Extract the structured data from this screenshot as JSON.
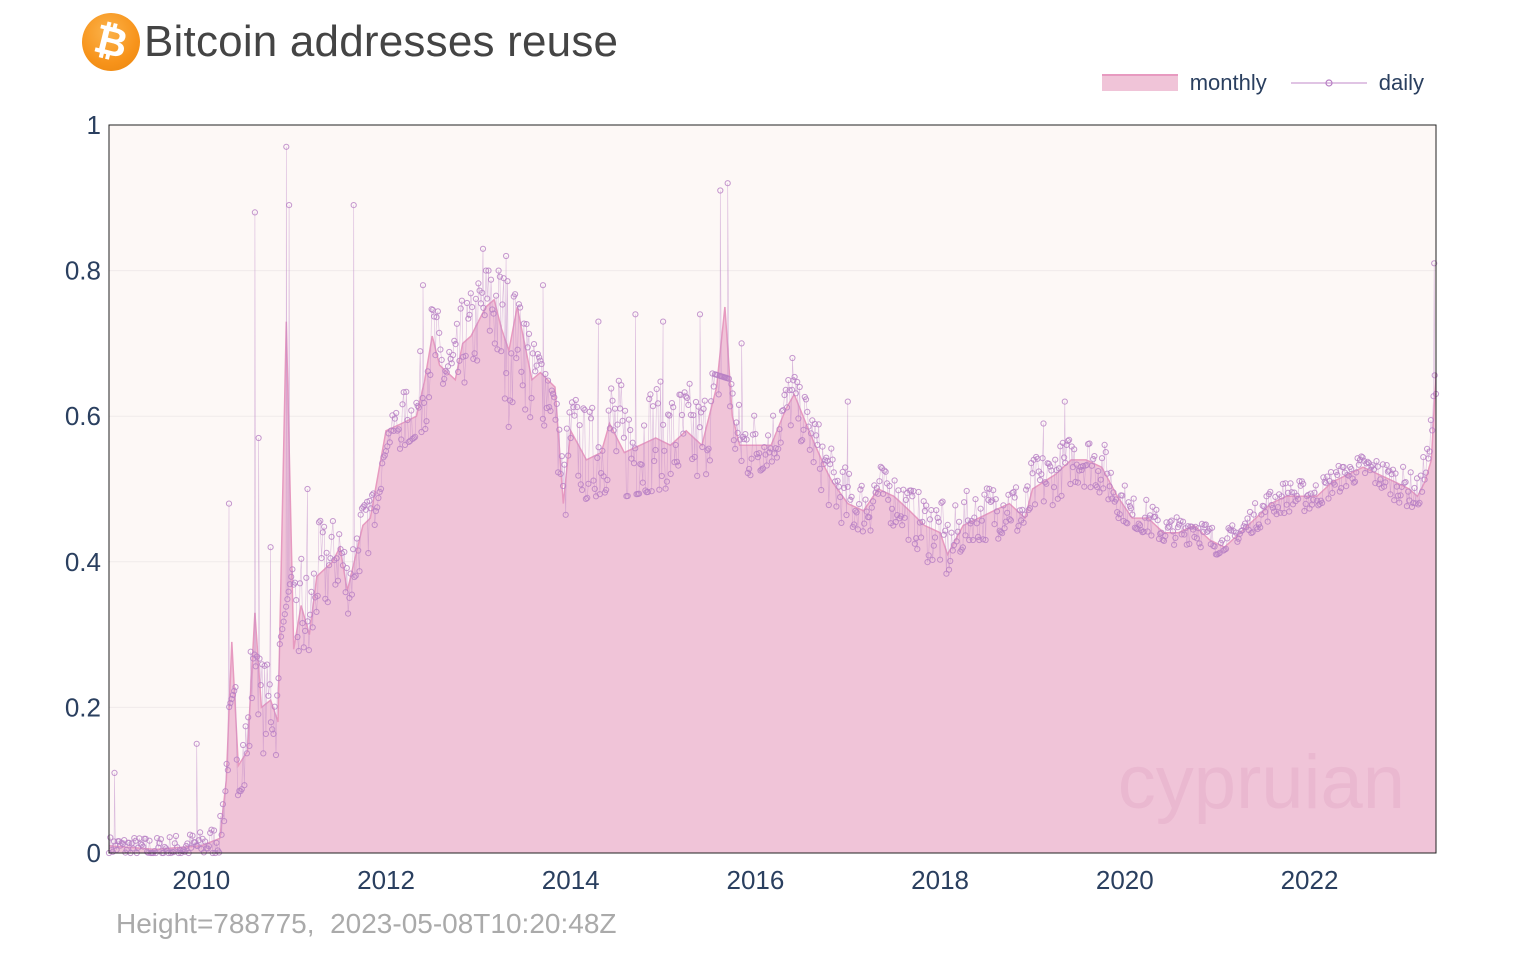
{
  "header": {
    "title": "Bitcoin addresses reuse",
    "logo_icon": "bitcoin-logo-icon",
    "logo_glyph": "₿"
  },
  "footer": {
    "height_label": "Height=788775,",
    "timestamp": "2023-05-08T10:20:48Z"
  },
  "watermark": "cypruian",
  "colors": {
    "plot_bg": "#fdf8f6",
    "monthly_fill": "#f0c4d8",
    "monthly_line": "#e79ac0",
    "daily_line": "#c088c8",
    "daily_marker": "#b77ec4",
    "axis_text": "#2a3f5f",
    "grid": "#f0ebea"
  },
  "chart_data": {
    "type": "area",
    "title": "Bitcoin addresses reuse",
    "xlabel": "",
    "ylabel": "",
    "xlim": [
      2009.0,
      2023.37
    ],
    "ylim": [
      0,
      1
    ],
    "x_ticks": [
      2010,
      2012,
      2014,
      2016,
      2018,
      2020,
      2022
    ],
    "x_tick_labels": [
      "2010",
      "2012",
      "2014",
      "2016",
      "2018",
      "2020",
      "2022"
    ],
    "y_ticks": [
      0,
      0.2,
      0.4,
      0.6,
      0.8,
      1
    ],
    "y_tick_labels": [
      "0",
      "0.2",
      "0.4",
      "0.6",
      "0.8",
      "1"
    ],
    "grid": true,
    "legend_position": "top-right",
    "series": [
      {
        "name": "monthly",
        "style": "filled area",
        "points": [
          [
            2009.0,
            0.01
          ],
          [
            2009.5,
            0.005
          ],
          [
            2010.0,
            0.01
          ],
          [
            2010.2,
            0.02
          ],
          [
            2010.27,
            0.1
          ],
          [
            2010.33,
            0.29
          ],
          [
            2010.4,
            0.12
          ],
          [
            2010.5,
            0.14
          ],
          [
            2010.58,
            0.33
          ],
          [
            2010.65,
            0.2
          ],
          [
            2010.75,
            0.21
          ],
          [
            2010.83,
            0.18
          ],
          [
            2010.92,
            0.73
          ],
          [
            2011.0,
            0.28
          ],
          [
            2011.08,
            0.34
          ],
          [
            2011.17,
            0.3
          ],
          [
            2011.25,
            0.38
          ],
          [
            2011.42,
            0.4
          ],
          [
            2011.5,
            0.42
          ],
          [
            2011.58,
            0.36
          ],
          [
            2011.75,
            0.45
          ],
          [
            2011.83,
            0.46
          ],
          [
            2012.0,
            0.58
          ],
          [
            2012.17,
            0.59
          ],
          [
            2012.33,
            0.6
          ],
          [
            2012.42,
            0.65
          ],
          [
            2012.5,
            0.71
          ],
          [
            2012.58,
            0.67
          ],
          [
            2012.75,
            0.65
          ],
          [
            2012.83,
            0.7
          ],
          [
            2012.92,
            0.71
          ],
          [
            2013.08,
            0.75
          ],
          [
            2013.17,
            0.76
          ],
          [
            2013.25,
            0.72
          ],
          [
            2013.33,
            0.69
          ],
          [
            2013.42,
            0.75
          ],
          [
            2013.58,
            0.65
          ],
          [
            2013.67,
            0.66
          ],
          [
            2013.83,
            0.64
          ],
          [
            2013.92,
            0.48
          ],
          [
            2014.0,
            0.58
          ],
          [
            2014.17,
            0.54
          ],
          [
            2014.33,
            0.55
          ],
          [
            2014.42,
            0.59
          ],
          [
            2014.58,
            0.55
          ],
          [
            2014.75,
            0.56
          ],
          [
            2014.92,
            0.57
          ],
          [
            2015.08,
            0.56
          ],
          [
            2015.25,
            0.58
          ],
          [
            2015.42,
            0.56
          ],
          [
            2015.5,
            0.6
          ],
          [
            2015.58,
            0.64
          ],
          [
            2015.67,
            0.75
          ],
          [
            2015.75,
            0.6
          ],
          [
            2015.83,
            0.56
          ],
          [
            2016.0,
            0.56
          ],
          [
            2016.17,
            0.56
          ],
          [
            2016.33,
            0.61
          ],
          [
            2016.42,
            0.63
          ],
          [
            2016.58,
            0.58
          ],
          [
            2016.75,
            0.53
          ],
          [
            2016.83,
            0.51
          ],
          [
            2017.0,
            0.48
          ],
          [
            2017.17,
            0.47
          ],
          [
            2017.33,
            0.5
          ],
          [
            2017.5,
            0.49
          ],
          [
            2017.67,
            0.47
          ],
          [
            2017.83,
            0.45
          ],
          [
            2018.0,
            0.44
          ],
          [
            2018.08,
            0.41
          ],
          [
            2018.25,
            0.45
          ],
          [
            2018.42,
            0.46
          ],
          [
            2018.58,
            0.47
          ],
          [
            2018.75,
            0.48
          ],
          [
            2018.92,
            0.46
          ],
          [
            2019.0,
            0.5
          ],
          [
            2019.25,
            0.52
          ],
          [
            2019.42,
            0.54
          ],
          [
            2019.58,
            0.54
          ],
          [
            2019.75,
            0.53
          ],
          [
            2019.92,
            0.49
          ],
          [
            2020.08,
            0.46
          ],
          [
            2020.25,
            0.46
          ],
          [
            2020.42,
            0.44
          ],
          [
            2020.58,
            0.44
          ],
          [
            2020.75,
            0.45
          ],
          [
            2020.92,
            0.43
          ],
          [
            2021.08,
            0.42
          ],
          [
            2021.25,
            0.44
          ],
          [
            2021.42,
            0.46
          ],
          [
            2021.58,
            0.48
          ],
          [
            2021.75,
            0.49
          ],
          [
            2021.92,
            0.49
          ],
          [
            2022.08,
            0.49
          ],
          [
            2022.25,
            0.51
          ],
          [
            2022.42,
            0.52
          ],
          [
            2022.58,
            0.53
          ],
          [
            2022.75,
            0.52
          ],
          [
            2022.92,
            0.51
          ],
          [
            2023.08,
            0.5
          ],
          [
            2023.17,
            0.49
          ],
          [
            2023.25,
            0.51
          ],
          [
            2023.32,
            0.54
          ],
          [
            2023.37,
            0.66
          ]
        ]
      },
      {
        "name": "daily",
        "style": "thin line with hollow circle markers",
        "envelope_lower": [
          [
            2009.0,
            0.0
          ],
          [
            2010.2,
            0.0
          ],
          [
            2010.3,
            0.06
          ],
          [
            2010.5,
            0.1
          ],
          [
            2010.8,
            0.12
          ],
          [
            2011.0,
            0.2
          ],
          [
            2011.3,
            0.3
          ],
          [
            2011.6,
            0.33
          ],
          [
            2011.9,
            0.4
          ],
          [
            2012.1,
            0.55
          ],
          [
            2012.4,
            0.58
          ],
          [
            2012.8,
            0.62
          ],
          [
            2013.0,
            0.66
          ],
          [
            2013.3,
            0.56
          ],
          [
            2013.6,
            0.52
          ],
          [
            2013.9,
            0.46
          ],
          [
            2014.2,
            0.49
          ],
          [
            2014.6,
            0.49
          ],
          [
            2015.0,
            0.5
          ],
          [
            2015.5,
            0.51
          ],
          [
            2016.0,
            0.52
          ],
          [
            2016.4,
            0.56
          ],
          [
            2016.8,
            0.46
          ],
          [
            2017.2,
            0.44
          ],
          [
            2017.6,
            0.41
          ],
          [
            2018.0,
            0.37
          ],
          [
            2018.3,
            0.43
          ],
          [
            2018.7,
            0.43
          ],
          [
            2019.0,
            0.45
          ],
          [
            2019.4,
            0.5
          ],
          [
            2019.8,
            0.47
          ],
          [
            2020.2,
            0.44
          ],
          [
            2020.6,
            0.42
          ],
          [
            2021.0,
            0.41
          ],
          [
            2021.5,
            0.45
          ],
          [
            2022.0,
            0.47
          ],
          [
            2022.5,
            0.51
          ],
          [
            2023.0,
            0.47
          ],
          [
            2023.2,
            0.48
          ],
          [
            2023.37,
            0.6
          ]
        ],
        "envelope_upper": [
          [
            2009.0,
            0.03
          ],
          [
            2010.2,
            0.05
          ],
          [
            2010.3,
            0.2
          ],
          [
            2010.5,
            0.28
          ],
          [
            2010.8,
            0.25
          ],
          [
            2011.0,
            0.4
          ],
          [
            2011.3,
            0.46
          ],
          [
            2011.6,
            0.45
          ],
          [
            2011.9,
            0.5
          ],
          [
            2012.1,
            0.62
          ],
          [
            2012.4,
            0.74
          ],
          [
            2012.8,
            0.77
          ],
          [
            2013.0,
            0.8
          ],
          [
            2013.3,
            0.8
          ],
          [
            2013.6,
            0.7
          ],
          [
            2013.9,
            0.6
          ],
          [
            2014.2,
            0.65
          ],
          [
            2014.6,
            0.7
          ],
          [
            2015.0,
            0.68
          ],
          [
            2015.5,
            0.66
          ],
          [
            2016.0,
            0.64
          ],
          [
            2016.4,
            0.66
          ],
          [
            2016.8,
            0.56
          ],
          [
            2017.2,
            0.55
          ],
          [
            2017.6,
            0.5
          ],
          [
            2018.0,
            0.49
          ],
          [
            2018.3,
            0.53
          ],
          [
            2018.7,
            0.52
          ],
          [
            2019.0,
            0.55
          ],
          [
            2019.4,
            0.58
          ],
          [
            2019.8,
            0.56
          ],
          [
            2020.2,
            0.5
          ],
          [
            2020.6,
            0.47
          ],
          [
            2021.0,
            0.46
          ],
          [
            2021.5,
            0.5
          ],
          [
            2022.0,
            0.52
          ],
          [
            2022.5,
            0.55
          ],
          [
            2023.0,
            0.53
          ],
          [
            2023.2,
            0.54
          ],
          [
            2023.37,
            0.8
          ]
        ],
        "spikes": [
          [
            2009.06,
            0.11
          ],
          [
            2009.95,
            0.15
          ],
          [
            2010.3,
            0.48
          ],
          [
            2010.58,
            0.88
          ],
          [
            2010.62,
            0.57
          ],
          [
            2010.75,
            0.42
          ],
          [
            2010.92,
            0.97
          ],
          [
            2010.95,
            0.89
          ],
          [
            2011.15,
            0.5
          ],
          [
            2011.65,
            0.89
          ],
          [
            2012.4,
            0.78
          ],
          [
            2013.05,
            0.83
          ],
          [
            2013.3,
            0.82
          ],
          [
            2013.7,
            0.78
          ],
          [
            2014.3,
            0.73
          ],
          [
            2014.7,
            0.74
          ],
          [
            2015.0,
            0.73
          ],
          [
            2015.4,
            0.74
          ],
          [
            2015.62,
            0.91
          ],
          [
            2015.7,
            0.92
          ],
          [
            2015.85,
            0.7
          ],
          [
            2016.4,
            0.68
          ],
          [
            2017.0,
            0.62
          ],
          [
            2019.12,
            0.59
          ],
          [
            2019.35,
            0.62
          ],
          [
            2023.35,
            0.81
          ]
        ]
      }
    ]
  }
}
